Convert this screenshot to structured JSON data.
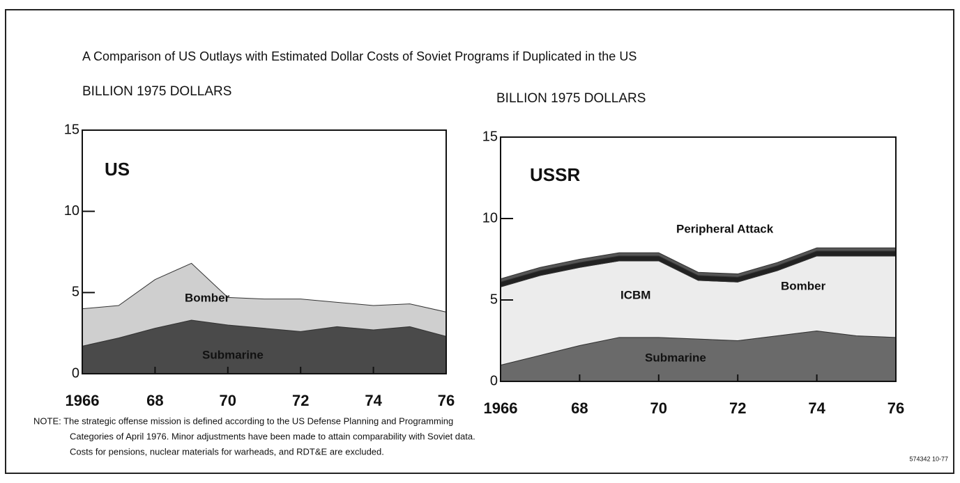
{
  "chart_data": [
    {
      "type": "area",
      "title": "A Comparison of US Outlays with Estimated Dollar Costs of Soviet Programs if Duplicated in the US",
      "ylabel": "BILLION 1975 DOLLARS",
      "panel_label": "US",
      "x": [
        1966,
        1967,
        1968,
        1969,
        1970,
        1971,
        1972,
        1973,
        1974,
        1975,
        1976
      ],
      "xlim": [
        1966,
        1976
      ],
      "xticks": [
        1966,
        {
          "value": 1968,
          "label": "68"
        },
        {
          "value": 1970,
          "label": "70"
        },
        {
          "value": 1972,
          "label": "72"
        },
        {
          "value": 1974,
          "label": "74"
        },
        {
          "value": 1976,
          "label": "76"
        }
      ],
      "ylim": [
        0,
        15
      ],
      "yticks": [
        0,
        5,
        10,
        15
      ],
      "stacked": true,
      "series": [
        {
          "name": "Submarine",
          "color": "#4a4a4a",
          "values": [
            1.7,
            2.2,
            2.8,
            3.3,
            3.0,
            2.8,
            2.6,
            2.9,
            2.7,
            2.9,
            2.3
          ]
        },
        {
          "name": "Bomber",
          "color": "#cfcfcf",
          "values": [
            2.3,
            2.0,
            3.0,
            3.5,
            1.7,
            1.8,
            2.0,
            1.5,
            1.5,
            1.4,
            1.5
          ]
        }
      ]
    },
    {
      "type": "area",
      "ylabel": "BILLION 1975 DOLLARS",
      "panel_label": "USSR",
      "x": [
        1966,
        1967,
        1968,
        1969,
        1970,
        1971,
        1972,
        1973,
        1974,
        1975,
        1976
      ],
      "xlim": [
        1966,
        1976
      ],
      "xticks": [
        1966,
        {
          "value": 1968,
          "label": "68"
        },
        {
          "value": 1970,
          "label": "70"
        },
        {
          "value": 1972,
          "label": "72"
        },
        {
          "value": 1974,
          "label": "74"
        },
        {
          "value": 1976,
          "label": "76"
        }
      ],
      "ylim": [
        0,
        15
      ],
      "yticks": [
        0,
        5,
        10,
        15
      ],
      "stacked": true,
      "series": [
        {
          "name": "Submarine",
          "color": "#6a6a6a",
          "values": [
            1.0,
            1.6,
            2.2,
            2.7,
            2.7,
            2.6,
            2.5,
            2.8,
            3.1,
            2.8,
            2.7
          ]
        },
        {
          "name": "ICBM",
          "color": "#ececec",
          "values": [
            4.8,
            4.9,
            4.8,
            4.7,
            4.7,
            3.6,
            3.6,
            4.0,
            4.6,
            4.9,
            5.0
          ]
        },
        {
          "name": "Bomber",
          "color": "#222222",
          "values": [
            0.3,
            0.3,
            0.3,
            0.3,
            0.3,
            0.3,
            0.3,
            0.3,
            0.3,
            0.3,
            0.3
          ]
        },
        {
          "name": "Peripheral Attack",
          "color": "#555555",
          "values": [
            0.2,
            0.2,
            0.2,
            0.2,
            0.2,
            0.2,
            0.2,
            0.2,
            0.2,
            0.2,
            0.2
          ]
        }
      ]
    }
  ],
  "note": [
    "NOTE: The strategic offense mission is defined according to the US Defense Planning and Programming",
    "Categories of April 1976. Minor adjustments have been made to attain comparability with Soviet data.",
    "Costs for pensions, nuclear materials for warheads, and RDT&E are excluded."
  ],
  "code": "574342 10-77"
}
